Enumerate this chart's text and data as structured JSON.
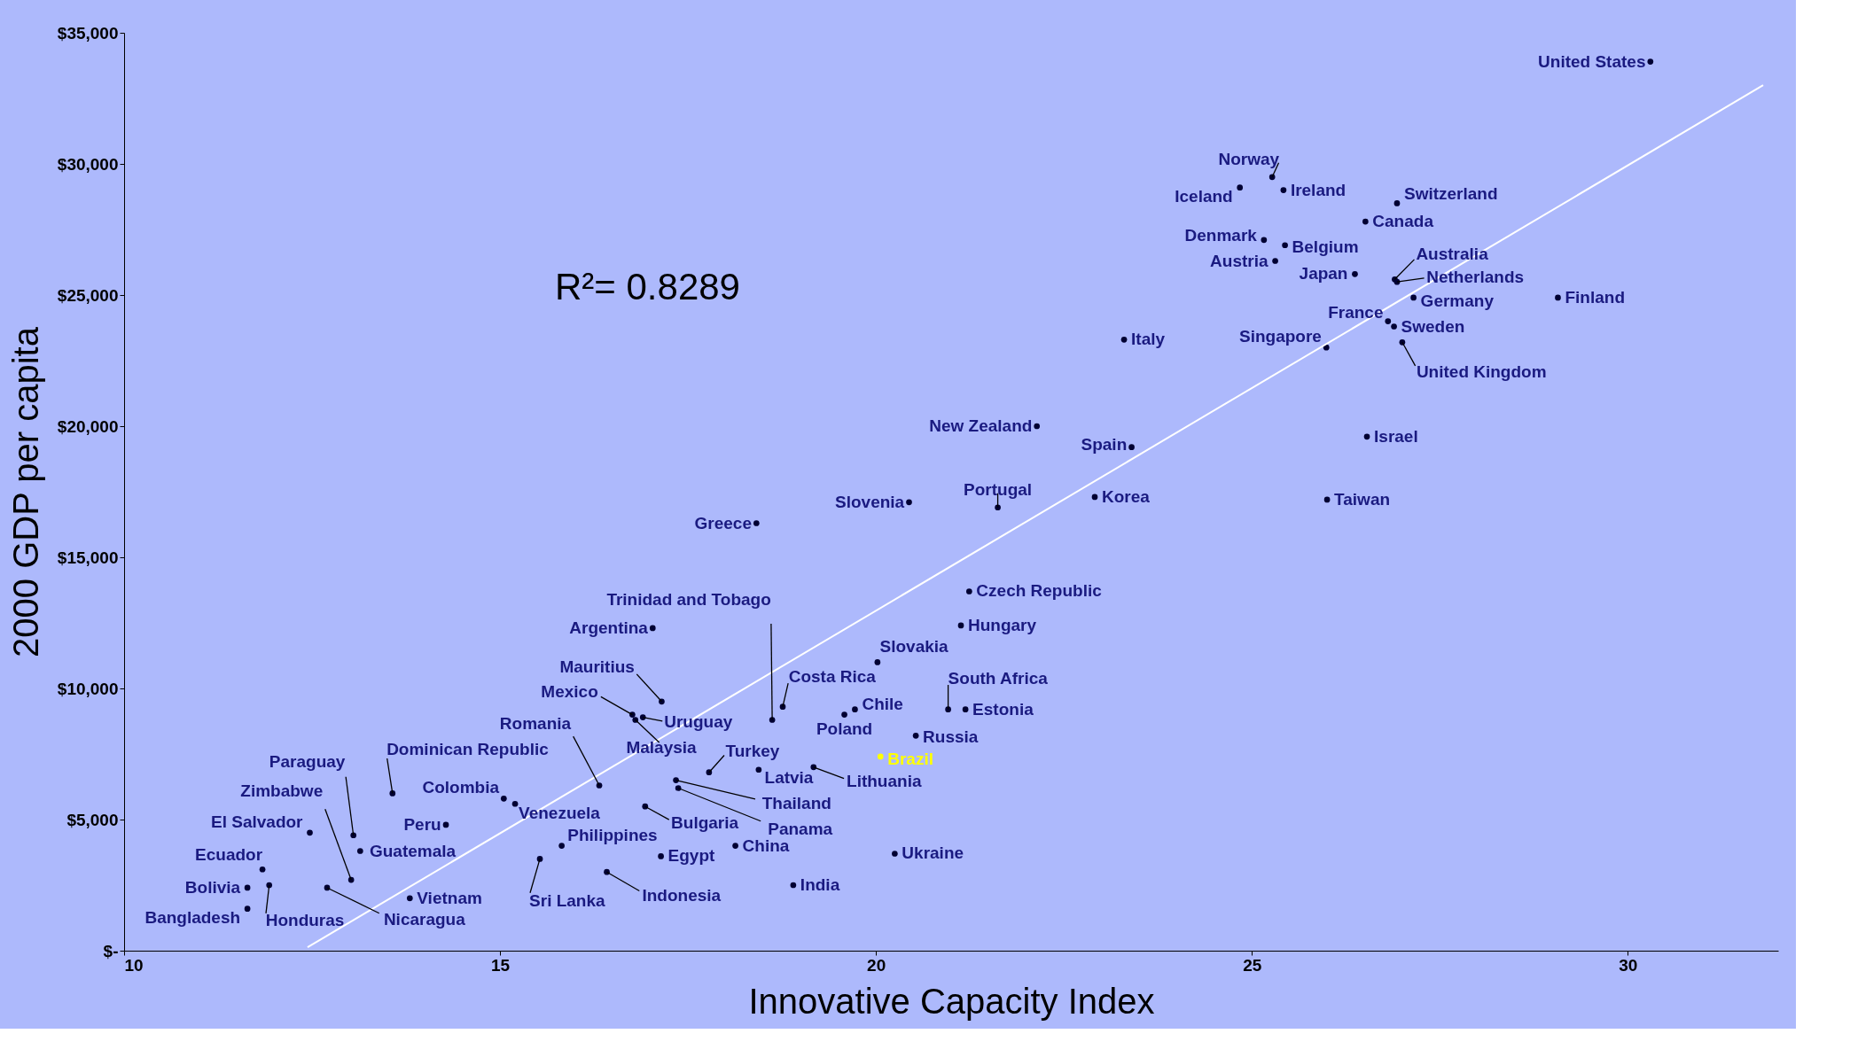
{
  "chart_data": {
    "type": "scatter",
    "xlabel": "Innovative Capacity Index",
    "ylabel": "2000 GDP per capita",
    "xlim": [
      10,
      32
    ],
    "xticks": [
      10,
      15,
      20,
      25,
      30
    ],
    "ylim": [
      0,
      35000
    ],
    "yticks": [
      {
        "value": 0,
        "label": "$-"
      },
      {
        "value": 5000,
        "label": "$5,000"
      },
      {
        "value": 10000,
        "label": "$10,000"
      },
      {
        "value": 15000,
        "label": "$15,000"
      },
      {
        "value": 20000,
        "label": "$20,000"
      },
      {
        "value": 25000,
        "label": "$25,000"
      },
      {
        "value": 30000,
        "label": "$30,000"
      },
      {
        "value": 35000,
        "label": "$35,000"
      }
    ],
    "grid": false,
    "marker": "circle",
    "series": [
      {
        "x": [
          30.3,
          25.27,
          25.42,
          24.84,
          26.93,
          26.51,
          25.16,
          25.44,
          25.31,
          26.37,
          26.9,
          26.93,
          27.15,
          29.07,
          26.81,
          26.89,
          25.99,
          27.0,
          23.3,
          22.14,
          23.4,
          26.53,
          22.91,
          26.0,
          20.44,
          21.62,
          18.41,
          21.24,
          21.13,
          18.62,
          17.03,
          20.02,
          17.15,
          16.76,
          16.9,
          16.8,
          18.76,
          19.72,
          19.58,
          20.96,
          21.19,
          20.53,
          16.32,
          17.78,
          18.44,
          19.17,
          20.06,
          13.57,
          15.05,
          15.2,
          17.34,
          17.37,
          16.93,
          13.05,
          14.28,
          12.47,
          13.14,
          13.02,
          15.82,
          15.53,
          17.14,
          18.13,
          20.25,
          16.42,
          18.9,
          11.84,
          11.64,
          11.93,
          12.7,
          13.8,
          11.64
        ],
        "values": [
          33900,
          29500,
          29000,
          29100,
          28500,
          27800,
          27100,
          26900,
          26300,
          25800,
          25600,
          25500,
          24900,
          24900,
          24000,
          23800,
          23000,
          23200,
          23300,
          20000,
          19200,
          19600,
          17300,
          17200,
          17100,
          16900,
          16300,
          13700,
          12400,
          8800,
          12300,
          11000,
          9500,
          9000,
          8900,
          8800,
          9300,
          9200,
          9000,
          9200,
          9200,
          8200,
          6300,
          6800,
          6900,
          7000,
          7400,
          6000,
          5800,
          5600,
          6500,
          6200,
          5500,
          4400,
          4800,
          4500,
          3800,
          2700,
          4000,
          3500,
          3600,
          4000,
          3700,
          3000,
          2500,
          3100,
          2400,
          2500,
          2400,
          2000,
          1600
        ],
        "colors": [
          "#000033",
          "#000033",
          "#000033",
          "#000033",
          "#000033",
          "#000033",
          "#000033",
          "#000033",
          "#000033",
          "#000033",
          "#000033",
          "#000033",
          "#000033",
          "#000033",
          "#000033",
          "#000033",
          "#000033",
          "#000033",
          "#000033",
          "#000033",
          "#000033",
          "#000033",
          "#000033",
          "#000033",
          "#000033",
          "#000033",
          "#000033",
          "#000033",
          "#000033",
          "#000033",
          "#000033",
          "#000033",
          "#000033",
          "#000033",
          "#000033",
          "#000033",
          "#000033",
          "#000033",
          "#000033",
          "#000033",
          "#000033",
          "#000033",
          "#000033",
          "#000033",
          "#000033",
          "#000033",
          "#ffff00",
          "#000033",
          "#000033",
          "#000033",
          "#000033",
          "#000033",
          "#000033",
          "#000033",
          "#000033",
          "#000033",
          "#000033",
          "#000033",
          "#000033",
          "#000033",
          "#000033",
          "#000033",
          "#000033",
          "#000033",
          "#000033",
          "#000033",
          "#000033",
          "#000033",
          "#000033",
          "#000033",
          "#000033"
        ]
      },
      {
        "type": "line",
        "marker": "none",
        "color": "#ffffff",
        "x": [
          12.44,
          31.8
        ],
        "values": [
          130,
          33000
        ]
      }
    ],
    "annotations": [
      {
        "text": "United States",
        "x": 30.3,
        "y": 33900
      },
      {
        "text": "Norway",
        "x": 25.27,
        "y": 29500
      },
      {
        "text": "Ireland",
        "x": 25.42,
        "y": 29000
      },
      {
        "text": "Iceland",
        "x": 24.84,
        "y": 29100
      },
      {
        "text": "Switzerland",
        "x": 26.93,
        "y": 28500
      },
      {
        "text": "Canada",
        "x": 26.51,
        "y": 27800
      },
      {
        "text": "Denmark",
        "x": 25.16,
        "y": 27100
      },
      {
        "text": "Belgium",
        "x": 25.44,
        "y": 26900
      },
      {
        "text": "Austria",
        "x": 25.31,
        "y": 26300
      },
      {
        "text": "Japan",
        "x": 26.37,
        "y": 25800
      },
      {
        "text": "Australia",
        "x": 26.9,
        "y": 25600
      },
      {
        "text": "Netherlands",
        "x": 26.93,
        "y": 25500
      },
      {
        "text": "Germany",
        "x": 27.15,
        "y": 24900
      },
      {
        "text": "Finland",
        "x": 29.07,
        "y": 24900
      },
      {
        "text": "France",
        "x": 26.81,
        "y": 24000
      },
      {
        "text": "Sweden",
        "x": 26.89,
        "y": 23800
      },
      {
        "text": "Singapore",
        "x": 25.99,
        "y": 23000
      },
      {
        "text": "United Kingdom",
        "x": 27.0,
        "y": 23200
      },
      {
        "text": "Italy",
        "x": 23.3,
        "y": 23300
      },
      {
        "text": "New Zealand",
        "x": 22.14,
        "y": 20000
      },
      {
        "text": "Spain",
        "x": 23.4,
        "y": 19200
      },
      {
        "text": "Israel",
        "x": 26.53,
        "y": 19600
      },
      {
        "text": "Korea",
        "x": 22.91,
        "y": 17300
      },
      {
        "text": "Taiwan",
        "x": 26.0,
        "y": 17200
      },
      {
        "text": "Slovenia",
        "x": 20.44,
        "y": 17100
      },
      {
        "text": "Portugal",
        "x": 21.62,
        "y": 16900
      },
      {
        "text": "Greece",
        "x": 18.41,
        "y": 16300
      },
      {
        "text": "Czech Republic",
        "x": 21.24,
        "y": 13700
      },
      {
        "text": "Hungary",
        "x": 21.13,
        "y": 12400
      },
      {
        "text": "Trinidad and Tobago",
        "x": 18.62,
        "y": 8800
      },
      {
        "text": "Argentina",
        "x": 17.03,
        "y": 12300
      },
      {
        "text": "Slovakia",
        "x": 20.02,
        "y": 11000
      },
      {
        "text": "Mauritius",
        "x": 17.15,
        "y": 9500
      },
      {
        "text": "Mexico",
        "x": 16.76,
        "y": 9000
      },
      {
        "text": "Uruguay",
        "x": 16.9,
        "y": 8900
      },
      {
        "text": "Malaysia",
        "x": 16.8,
        "y": 8800
      },
      {
        "text": "Costa Rica",
        "x": 18.76,
        "y": 9300
      },
      {
        "text": "Chile",
        "x": 19.72,
        "y": 9200
      },
      {
        "text": "Poland",
        "x": 19.58,
        "y": 9000
      },
      {
        "text": "South Africa",
        "x": 20.96,
        "y": 9200
      },
      {
        "text": "Estonia",
        "x": 21.19,
        "y": 9200
      },
      {
        "text": "Russia",
        "x": 20.53,
        "y": 8200
      },
      {
        "text": "Romania",
        "x": 16.32,
        "y": 6300
      },
      {
        "text": "Turkey",
        "x": 17.78,
        "y": 6800
      },
      {
        "text": "Latvia",
        "x": 18.44,
        "y": 6900
      },
      {
        "text": "Lithuania",
        "x": 19.17,
        "y": 7000
      },
      {
        "text": "Brazil",
        "x": 20.06,
        "y": 7400
      },
      {
        "text": "Dominican Republic",
        "x": 13.57,
        "y": 6000
      },
      {
        "text": "Colombia",
        "x": 15.05,
        "y": 5800
      },
      {
        "text": "Venezuela",
        "x": 15.2,
        "y": 5600
      },
      {
        "text": "Thailand",
        "x": 17.34,
        "y": 6500
      },
      {
        "text": "Panama",
        "x": 17.37,
        "y": 6200
      },
      {
        "text": "Bulgaria",
        "x": 16.93,
        "y": 5500
      },
      {
        "text": "Paraguay",
        "x": 13.05,
        "y": 4400
      },
      {
        "text": "Peru",
        "x": 14.28,
        "y": 4800
      },
      {
        "text": "El Salvador",
        "x": 12.47,
        "y": 4500
      },
      {
        "text": "Guatemala",
        "x": 13.14,
        "y": 3800
      },
      {
        "text": "Zimbabwe",
        "x": 13.02,
        "y": 2700
      },
      {
        "text": "Philippines",
        "x": 15.82,
        "y": 4000
      },
      {
        "text": "Sri Lanka",
        "x": 15.53,
        "y": 3500
      },
      {
        "text": "Egypt",
        "x": 17.14,
        "y": 3600
      },
      {
        "text": "China",
        "x": 18.13,
        "y": 4000
      },
      {
        "text": "Ukraine",
        "x": 20.25,
        "y": 3700
      },
      {
        "text": "Indonesia",
        "x": 16.42,
        "y": 3000
      },
      {
        "text": "India",
        "x": 18.9,
        "y": 2500
      },
      {
        "text": "Ecuador",
        "x": 11.84,
        "y": 3100
      },
      {
        "text": "Bolivia",
        "x": 11.64,
        "y": 2400
      },
      {
        "text": "Honduras",
        "x": 11.93,
        "y": 2500
      },
      {
        "text": "Nicaragua",
        "x": 12.7,
        "y": 2400
      },
      {
        "text": "Vietnam",
        "x": 13.8,
        "y": 2000
      },
      {
        "text": "Bangladesh",
        "x": 11.64,
        "y": 1600
      },
      "R²= 0.8289"
    ]
  }
}
